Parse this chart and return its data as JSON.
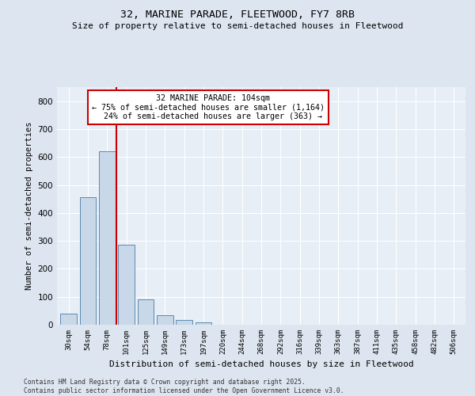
{
  "title1": "32, MARINE PARADE, FLEETWOOD, FY7 8RB",
  "title2": "Size of property relative to semi-detached houses in Fleetwood",
  "xlabel": "Distribution of semi-detached houses by size in Fleetwood",
  "ylabel": "Number of semi-detached properties",
  "categories": [
    "30sqm",
    "54sqm",
    "78sqm",
    "101sqm",
    "125sqm",
    "149sqm",
    "173sqm",
    "197sqm",
    "220sqm",
    "244sqm",
    "268sqm",
    "292sqm",
    "316sqm",
    "339sqm",
    "363sqm",
    "387sqm",
    "411sqm",
    "435sqm",
    "458sqm",
    "482sqm",
    "506sqm"
  ],
  "values": [
    40,
    455,
    620,
    285,
    92,
    33,
    17,
    8,
    0,
    0,
    0,
    0,
    0,
    0,
    0,
    0,
    0,
    0,
    0,
    0,
    0
  ],
  "bar_color": "#c8d8e8",
  "bar_edge_color": "#5a8ab0",
  "marker_line_color": "#cc0000",
  "annotation_box_color": "#ffffff",
  "annotation_box_edge": "#cc0000",
  "marker_label": "32 MARINE PARADE: 104sqm",
  "pct_smaller": "75% of semi-detached houses are smaller (1,164)",
  "pct_larger": "24% of semi-detached houses are larger (363)",
  "ylim": [
    0,
    850
  ],
  "yticks": [
    0,
    100,
    200,
    300,
    400,
    500,
    600,
    700,
    800
  ],
  "footer1": "Contains HM Land Registry data © Crown copyright and database right 2025.",
  "footer2": "Contains public sector information licensed under the Open Government Licence v3.0.",
  "bg_color": "#dde6f0",
  "plot_bg_color": "#e8eef6"
}
